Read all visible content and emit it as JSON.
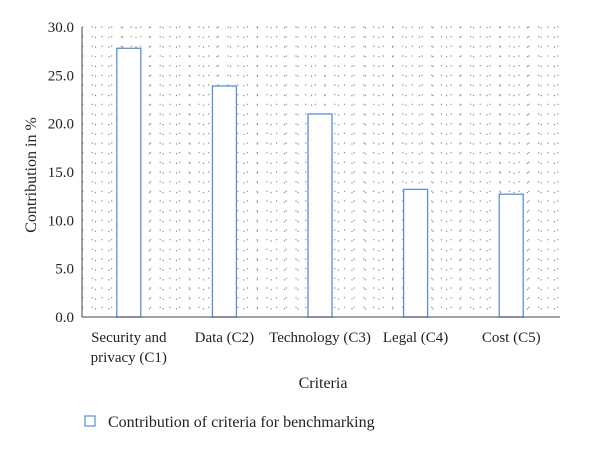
{
  "chart_data": {
    "type": "bar",
    "categories": [
      [
        "Security and",
        "privacy (C1)"
      ],
      [
        "Data (C2)"
      ],
      [
        "Technology (C3)"
      ],
      [
        "Legal (C4)"
      ],
      [
        "Cost (C5)"
      ]
    ],
    "series": [
      {
        "name": "Contribution of criteria for benchmarking",
        "values": [
          27.8,
          23.9,
          21.0,
          13.2,
          12.7
        ]
      }
    ],
    "xlabel": "Criteria",
    "ylabel": "Contribution in %",
    "ylim": [
      0,
      30
    ],
    "yticks": [
      "0.0",
      "5.0",
      "10.0",
      "15.0",
      "20.0",
      "25.0",
      "30.0"
    ],
    "grid": true,
    "legend_position": "bottom-left",
    "colors": {
      "bar_stroke": "#5b8fd9",
      "grid": "#888888",
      "axis": "#444444"
    }
  }
}
